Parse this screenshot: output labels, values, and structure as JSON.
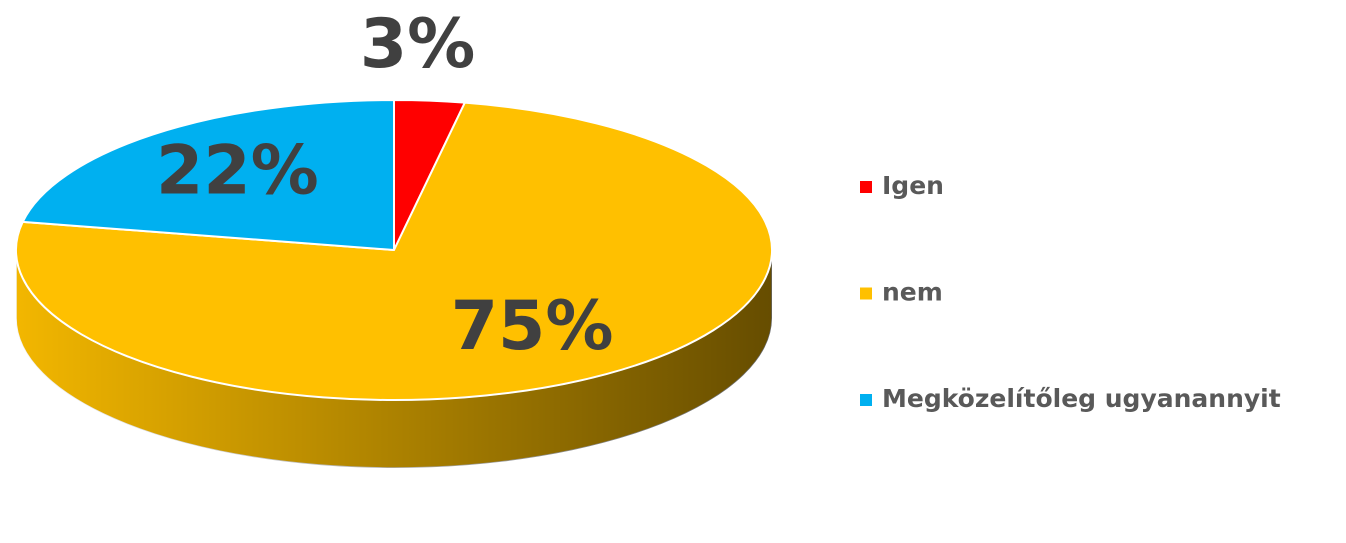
{
  "chart_data": {
    "type": "pie",
    "categories": [
      "Igen",
      "nem",
      "Megközelítőleg ugyanannyit"
    ],
    "values": [
      3,
      75,
      22
    ],
    "value_labels": [
      "3%",
      "75%",
      "22%"
    ],
    "colors": [
      "#ff0000",
      "#ffc000",
      "#00b0f0"
    ],
    "legend": "right"
  }
}
